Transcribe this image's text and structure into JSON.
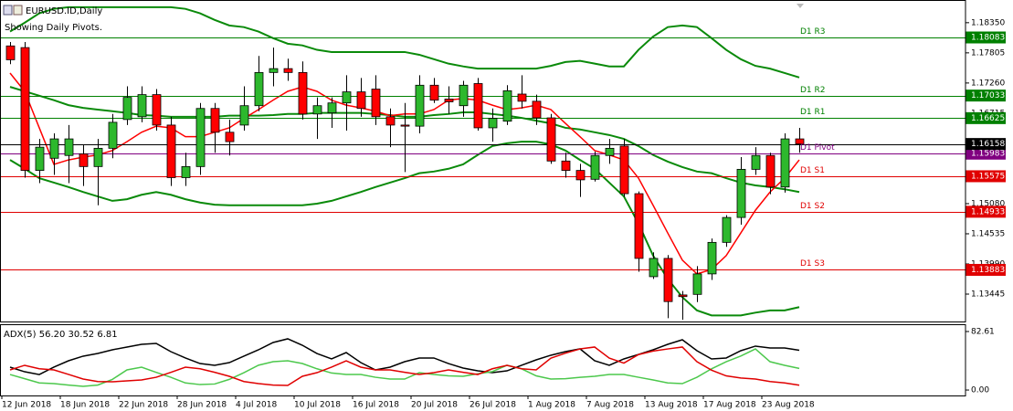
{
  "chart_data": [
    {
      "type": "candlestick",
      "title": "EURUSD.ID,Daily",
      "subtitle": "Showing Daily Pivots.",
      "categories": [
        "12 Jun 2018",
        null,
        null,
        null,
        "18 Jun 2018",
        null,
        null,
        null,
        "22 Jun 2018",
        null,
        null,
        null,
        "28 Jun 2018",
        null,
        null,
        null,
        "4 Jul 2018",
        null,
        null,
        null,
        "10 Jul 2018",
        null,
        null,
        null,
        "16 Jul 2018",
        null,
        null,
        null,
        "20 Jul 2018",
        null,
        null,
        null,
        "26 Jul 2018",
        null,
        null,
        null,
        "1 Aug 2018",
        null,
        null,
        null,
        "7 Aug 2018",
        null,
        null,
        null,
        "13 Aug 2018",
        null,
        null,
        null,
        "17 Aug 2018",
        null,
        null,
        null,
        "23 Aug 2018",
        null,
        null
      ],
      "open": [
        1.1793,
        1.179,
        1.1568,
        1.159,
        1.1595,
        1.1598,
        1.1575,
        1.1608,
        1.166,
        1.1665,
        1.1705,
        1.165,
        1.1555,
        1.1575,
        1.168,
        1.1637,
        1.165,
        1.1685,
        1.1745,
        1.1752,
        1.1745,
        1.167,
        1.1672,
        1.169,
        1.171,
        1.1715,
        1.1665,
        1.165,
        1.1648,
        1.1722,
        1.1697,
        1.1685,
        1.1725,
        1.1645,
        1.1657,
        1.1706,
        1.1693,
        1.1663,
        1.1585,
        1.1568,
        1.1552,
        1.1595,
        1.1612,
        1.1526,
        1.1376,
        1.1409,
        1.1343,
        1.1344,
        1.1381,
        1.1438,
        1.1483,
        1.157,
        1.1595,
        1.1538,
        1.1625
      ],
      "high": [
        1.18,
        1.18,
        1.1625,
        1.1635,
        1.165,
        1.1615,
        1.1625,
        1.167,
        1.172,
        1.172,
        1.1715,
        1.1665,
        1.16,
        1.169,
        1.169,
        1.166,
        1.172,
        1.1775,
        1.179,
        1.177,
        1.1765,
        1.17,
        1.17,
        1.174,
        1.1735,
        1.174,
        1.168,
        1.169,
        1.174,
        1.1735,
        1.172,
        1.173,
        1.1735,
        1.168,
        1.1722,
        1.174,
        1.1705,
        1.167,
        1.16,
        1.158,
        1.1602,
        1.1625,
        1.1625,
        1.153,
        1.142,
        1.1415,
        1.135,
        1.1395,
        1.1445,
        1.1487,
        1.1592,
        1.161,
        1.16,
        1.1635,
        1.1645
      ],
      "low": [
        1.176,
        1.1555,
        1.1545,
        1.156,
        1.1545,
        1.154,
        1.1505,
        1.159,
        1.165,
        1.1655,
        1.164,
        1.154,
        1.154,
        1.156,
        1.16,
        1.1595,
        1.164,
        1.1675,
        1.172,
        1.173,
        1.166,
        1.1625,
        1.1645,
        1.164,
        1.1665,
        1.165,
        1.161,
        1.1565,
        1.1635,
        1.169,
        1.167,
        1.1665,
        1.164,
        1.162,
        1.165,
        1.168,
        1.165,
        1.158,
        1.1555,
        1.152,
        1.1548,
        1.158,
        1.152,
        1.1385,
        1.1372,
        1.1301,
        1.1298,
        1.133,
        1.137,
        1.143,
        1.147,
        1.156,
        1.1525,
        1.1528,
        1.16
      ],
      "close": [
        1.1768,
        1.1568,
        1.161,
        1.1625,
        1.1625,
        1.1575,
        1.1608,
        1.1655,
        1.17,
        1.1705,
        1.165,
        1.1555,
        1.1575,
        1.168,
        1.1637,
        1.162,
        1.1685,
        1.1745,
        1.1752,
        1.1745,
        1.167,
        1.1685,
        1.169,
        1.171,
        1.168,
        1.1665,
        1.165,
        1.1648,
        1.1722,
        1.1695,
        1.1692,
        1.1722,
        1.1645,
        1.1662,
        1.1712,
        1.1693,
        1.1663,
        1.1585,
        1.1568,
        1.1551,
        1.1595,
        1.1608,
        1.1526,
        1.1409,
        1.1409,
        1.1331,
        1.134,
        1.1381,
        1.1438,
        1.1483,
        1.157,
        1.1595,
        1.1538,
        1.1625,
        1.16158
      ],
      "up_color": "#2db82d",
      "down_color": "#ff0000",
      "overlays": [
        {
          "color": "#0a8a0a",
          "values": [
            1.1819,
            1.1835,
            1.1852,
            1.186,
            1.1863,
            1.1863,
            1.1863,
            1.1863,
            1.1863,
            1.1863,
            1.1863,
            1.1863,
            1.186,
            1.1852,
            1.184,
            1.183,
            1.1827,
            1.1819,
            1.1807,
            1.1797,
            1.1794,
            1.1786,
            1.1782,
            1.1782,
            1.1782,
            1.1782,
            1.1782,
            1.1782,
            1.1777,
            1.1769,
            1.1761,
            1.1756,
            1.1752,
            1.1752,
            1.1752,
            1.1752,
            1.1752,
            1.1757,
            1.1764,
            1.1766,
            1.1761,
            1.1756,
            1.1756,
            1.1786,
            1.181,
            1.1827,
            1.183,
            1.1827,
            1.1807,
            1.1786,
            1.1769,
            1.1757,
            1.1752,
            1.1744,
            1.1736
          ]
        },
        {
          "color": "#0a8a0a",
          "values": [
            1.1719,
            1.1711,
            1.1703,
            1.1695,
            1.1686,
            1.1681,
            1.1678,
            1.1675,
            1.1672,
            1.1668,
            1.1667,
            1.1665,
            1.1665,
            1.1665,
            1.1665,
            1.1667,
            1.1667,
            1.1667,
            1.1668,
            1.167,
            1.167,
            1.1672,
            1.1672,
            1.1672,
            1.1672,
            1.167,
            1.1668,
            1.1665,
            1.1665,
            1.1668,
            1.167,
            1.1673,
            1.1673,
            1.167,
            1.1667,
            1.1663,
            1.1658,
            1.1653,
            1.1645,
            1.1642,
            1.1637,
            1.1632,
            1.1625,
            1.1612,
            1.1596,
            1.1584,
            1.1574,
            1.1566,
            1.1563,
            1.1554,
            1.1546,
            1.1541,
            1.1538,
            1.1534,
            1.1529
          ]
        },
        {
          "color": "#0a8a0a",
          "values": [
            1.1587,
            1.1571,
            1.1554,
            1.1546,
            1.1538,
            1.1529,
            1.1521,
            1.1513,
            1.1516,
            1.1524,
            1.1529,
            1.1524,
            1.1516,
            1.151,
            1.1506,
            1.1505,
            1.1505,
            1.1505,
            1.1505,
            1.1505,
            1.1505,
            1.1508,
            1.1513,
            1.1521,
            1.1529,
            1.1538,
            1.1546,
            1.1554,
            1.1563,
            1.1566,
            1.1571,
            1.1579,
            1.1596,
            1.1612,
            1.1617,
            1.162,
            1.162,
            1.1615,
            1.1604,
            1.1587,
            1.1571,
            1.1546,
            1.1521,
            1.1472,
            1.1414,
            1.1372,
            1.1339,
            1.1315,
            1.1306,
            1.1306,
            1.1306,
            1.1311,
            1.1315,
            1.1315,
            1.1321
          ]
        },
        {
          "color": "#ff0000",
          "values": [
            1.1744,
            1.1711,
            1.1645,
            1.1579,
            1.1587,
            1.1592,
            1.1596,
            1.1604,
            1.162,
            1.1637,
            1.1648,
            1.1645,
            1.1629,
            1.1629,
            1.1637,
            1.1645,
            1.1662,
            1.1678,
            1.1695,
            1.1711,
            1.1719,
            1.1711,
            1.1695,
            1.1686,
            1.1681,
            1.1675,
            1.1667,
            1.167,
            1.167,
            1.1678,
            1.1695,
            1.1698,
            1.1695,
            1.1686,
            1.1678,
            1.1681,
            1.1686,
            1.1678,
            1.1653,
            1.1629,
            1.1604,
            1.1596,
            1.1587,
            1.1554,
            1.1505,
            1.1455,
            1.1406,
            1.1381,
            1.1389,
            1.1414,
            1.1455,
            1.1496,
            1.1529,
            1.1554,
            1.1587
          ]
        }
      ],
      "levels": [
        {
          "label": "D1 R3",
          "value": 1.18083,
          "color": "#008000"
        },
        {
          "label": "D1 R2",
          "value": 1.17033,
          "color": "#008000"
        },
        {
          "label": "D1 R1",
          "value": 1.16625,
          "color": "#008000"
        },
        {
          "label": "D1 Pivot",
          "value": 1.15983,
          "color": "#800080"
        },
        {
          "label": "D1 S1",
          "value": 1.15575,
          "color": "#e00000"
        },
        {
          "label": "D1 S2",
          "value": 1.14933,
          "color": "#e00000"
        },
        {
          "label": "D1 S3",
          "value": 1.13883,
          "color": "#e00000"
        }
      ],
      "current_price": 1.16158,
      "ylim": [
        1.1295,
        1.1876
      ],
      "yticks": [
        {
          "value": 1.1835,
          "label": "1.18350"
        },
        1.17805,
        {
          "value": 1.1726,
          "label": "1.17260"
        },
        1.16715,
        {
          "value": 1.1508,
          "label": "1.15080"
        },
        1.14535,
        {
          "value": 1.1399,
          "label": "1.13990"
        },
        1.13445
      ]
    },
    {
      "type": "line",
      "title": "ADX(5) 56.20 30.52 6.81",
      "series": [
        {
          "color": "#000000",
          "values": [
            32.3,
            25.8,
            21.9,
            32.3,
            41.3,
            47.8,
            51.6,
            56.8,
            60.7,
            64.5,
            65.8,
            54.2,
            45.2,
            37.4,
            34.9,
            38.7,
            47.8,
            56.8,
            67.1,
            72.3,
            63.2,
            51.6,
            43.9,
            52.9,
            38.7,
            28.4,
            32.3,
            40.0,
            45.2,
            45.2,
            37.4,
            31.0,
            27.1,
            24.5,
            27.1,
            34.9,
            42.6,
            49.1,
            54.2,
            58.1,
            41.3,
            34.9,
            43.9,
            50.3,
            56.8,
            64.5,
            71.0,
            55.5,
            43.9,
            45.2,
            55.5,
            62.0,
            59.4,
            59.4,
            56.2
          ]
        },
        {
          "color": "#4cc84c",
          "values": [
            21.9,
            16.0,
            10.0,
            9.0,
            7.0,
            5.2,
            7.0,
            15.0,
            28.4,
            32.3,
            25.0,
            18.0,
            10.0,
            7.7,
            8.5,
            15.0,
            24.5,
            35.0,
            40.0,
            41.3,
            37.4,
            30.0,
            24.0,
            21.9,
            21.9,
            18.0,
            15.5,
            15.5,
            24.5,
            21.9,
            20.0,
            19.4,
            23.0,
            26.0,
            34.9,
            30.0,
            20.0,
            15.5,
            16.0,
            18.0,
            19.4,
            21.9,
            21.9,
            18.0,
            14.2,
            10.0,
            9.0,
            18.0,
            30.0,
            40.0,
            48.0,
            58.0,
            40.0,
            34.9,
            30.52
          ]
        },
        {
          "color": "#e00000",
          "values": [
            28.4,
            34.9,
            30.0,
            28.4,
            22.0,
            15.5,
            12.0,
            11.6,
            13.0,
            14.2,
            18.0,
            25.0,
            32.3,
            30.0,
            25.0,
            19.4,
            12.0,
            9.0,
            7.0,
            6.5,
            19.4,
            24.5,
            32.3,
            41.3,
            32.3,
            28.4,
            28.4,
            25.0,
            22.0,
            24.5,
            28.4,
            25.0,
            21.9,
            30.0,
            34.9,
            30.0,
            28.4,
            45.0,
            52.0,
            58.0,
            60.7,
            45.0,
            38.0,
            50.0,
            55.0,
            58.0,
            60.7,
            40.0,
            28.0,
            20.0,
            17.0,
            15.5,
            12.0,
            10.0,
            6.81
          ]
        }
      ],
      "ylim": [
        -7.7,
        92.9
      ],
      "yticks": [
        82.61,
        {
          "value": 0,
          "label": "0.00"
        }
      ]
    }
  ]
}
